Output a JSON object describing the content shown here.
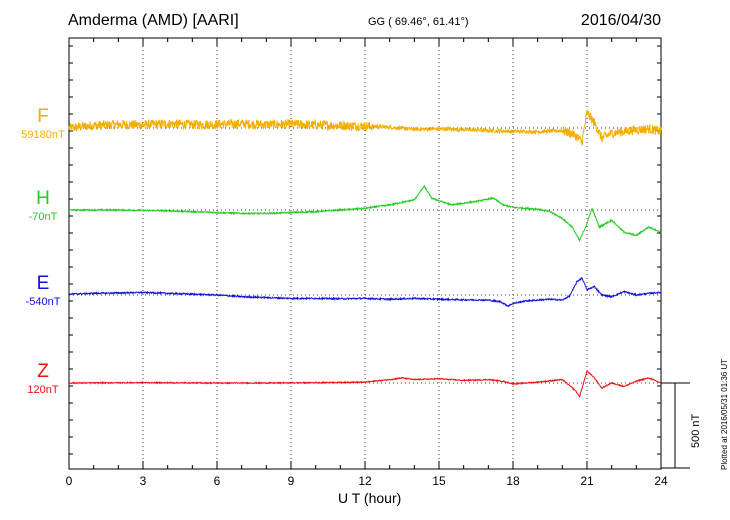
{
  "header": {
    "station": "Amderma (AMD)  [AARI]",
    "coords": "GG ( 69.46°,  61.41°)",
    "date": "2016/04/30"
  },
  "footer": {
    "plotted": "Plotted at 2016/05/31 01:36 UT",
    "scale_bar": "500 nT"
  },
  "chart_data": {
    "type": "line",
    "xlabel": "U T (hour)",
    "x_ticks": [
      "0",
      "3",
      "6",
      "9",
      "12",
      "15",
      "18",
      "21",
      "24"
    ],
    "xlim": [
      0,
      24
    ],
    "grid": true,
    "scale_bar_nT": 500,
    "series": [
      {
        "name": "F",
        "baseline_label": "59180nT",
        "color": "#f5ad00",
        "noise": 28,
        "points": [
          [
            0,
            0
          ],
          [
            1,
            15
          ],
          [
            2,
            20
          ],
          [
            3,
            18
          ],
          [
            4,
            25
          ],
          [
            5,
            20
          ],
          [
            6,
            22
          ],
          [
            7,
            25
          ],
          [
            8,
            20
          ],
          [
            9,
            22
          ],
          [
            10,
            18
          ],
          [
            11,
            15
          ],
          [
            12,
            12
          ],
          [
            13,
            5
          ],
          [
            14,
            -8
          ],
          [
            15,
            -5
          ],
          [
            16,
            -10
          ],
          [
            17,
            -15
          ],
          [
            18,
            -20
          ],
          [
            19,
            -22
          ],
          [
            20,
            -15
          ],
          [
            20.5,
            -40
          ],
          [
            20.8,
            -80
          ],
          [
            21.0,
            90
          ],
          [
            21.3,
            30
          ],
          [
            21.6,
            -60
          ],
          [
            22,
            -30
          ],
          [
            22.5,
            -20
          ],
          [
            23,
            -10
          ],
          [
            23.5,
            -5
          ],
          [
            24,
            -20
          ]
        ]
      },
      {
        "name": "H",
        "baseline_label": "-70nT",
        "color": "#22cc22",
        "noise": 4,
        "points": [
          [
            0,
            0
          ],
          [
            2,
            0
          ],
          [
            4,
            -5
          ],
          [
            6,
            -15
          ],
          [
            7,
            -20
          ],
          [
            8,
            -20
          ],
          [
            9,
            -15
          ],
          [
            10,
            -10
          ],
          [
            11,
            0
          ],
          [
            12,
            10
          ],
          [
            13,
            30
          ],
          [
            14,
            60
          ],
          [
            14.4,
            140
          ],
          [
            14.7,
            70
          ],
          [
            15.5,
            30
          ],
          [
            16.5,
            50
          ],
          [
            17.2,
            70
          ],
          [
            17.6,
            30
          ],
          [
            18,
            15
          ],
          [
            19,
            5
          ],
          [
            19.5,
            -10
          ],
          [
            20,
            -50
          ],
          [
            20.4,
            -100
          ],
          [
            20.7,
            -180
          ],
          [
            21,
            -80
          ],
          [
            21.2,
            10
          ],
          [
            21.5,
            -100
          ],
          [
            22,
            -60
          ],
          [
            22.5,
            -130
          ],
          [
            23,
            -150
          ],
          [
            23.5,
            -100
          ],
          [
            24,
            -130
          ]
        ]
      },
      {
        "name": "E",
        "baseline_label": "-540nT",
        "color": "#1010dd",
        "noise": 4,
        "points": [
          [
            0,
            5
          ],
          [
            1,
            10
          ],
          [
            2,
            12
          ],
          [
            3,
            15
          ],
          [
            4,
            10
          ],
          [
            5,
            5
          ],
          [
            6,
            0
          ],
          [
            7,
            -10
          ],
          [
            8,
            -15
          ],
          [
            9,
            -20
          ],
          [
            10,
            -20
          ],
          [
            11,
            -22
          ],
          [
            12,
            -20
          ],
          [
            13,
            -25
          ],
          [
            14,
            -20
          ],
          [
            15,
            -25
          ],
          [
            16,
            -28
          ],
          [
            17,
            -30
          ],
          [
            17.5,
            -40
          ],
          [
            17.8,
            -65
          ],
          [
            18,
            -50
          ],
          [
            18.5,
            -35
          ],
          [
            19,
            -30
          ],
          [
            19.5,
            -25
          ],
          [
            20,
            -30
          ],
          [
            20.3,
            -5
          ],
          [
            20.6,
            80
          ],
          [
            20.8,
            100
          ],
          [
            21,
            30
          ],
          [
            21.3,
            50
          ],
          [
            21.6,
            0
          ],
          [
            22,
            -10
          ],
          [
            22.5,
            20
          ],
          [
            23,
            0
          ],
          [
            23.5,
            10
          ],
          [
            24,
            15
          ]
        ]
      },
      {
        "name": "Z",
        "baseline_label": "120nT",
        "color": "#ee1111",
        "noise": 3,
        "points": [
          [
            0,
            0
          ],
          [
            3,
            2
          ],
          [
            6,
            0
          ],
          [
            8,
            0
          ],
          [
            10,
            2
          ],
          [
            12,
            5
          ],
          [
            13,
            20
          ],
          [
            13.5,
            30
          ],
          [
            14,
            20
          ],
          [
            15,
            25
          ],
          [
            16,
            15
          ],
          [
            17,
            20
          ],
          [
            17.6,
            10
          ],
          [
            18,
            -5
          ],
          [
            19,
            5
          ],
          [
            20,
            20
          ],
          [
            20.5,
            -40
          ],
          [
            20.7,
            -80
          ],
          [
            21,
            70
          ],
          [
            21.3,
            30
          ],
          [
            21.6,
            -30
          ],
          [
            22,
            0
          ],
          [
            22.5,
            -20
          ],
          [
            23,
            10
          ],
          [
            23.5,
            30
          ],
          [
            24,
            0
          ]
        ]
      }
    ]
  }
}
